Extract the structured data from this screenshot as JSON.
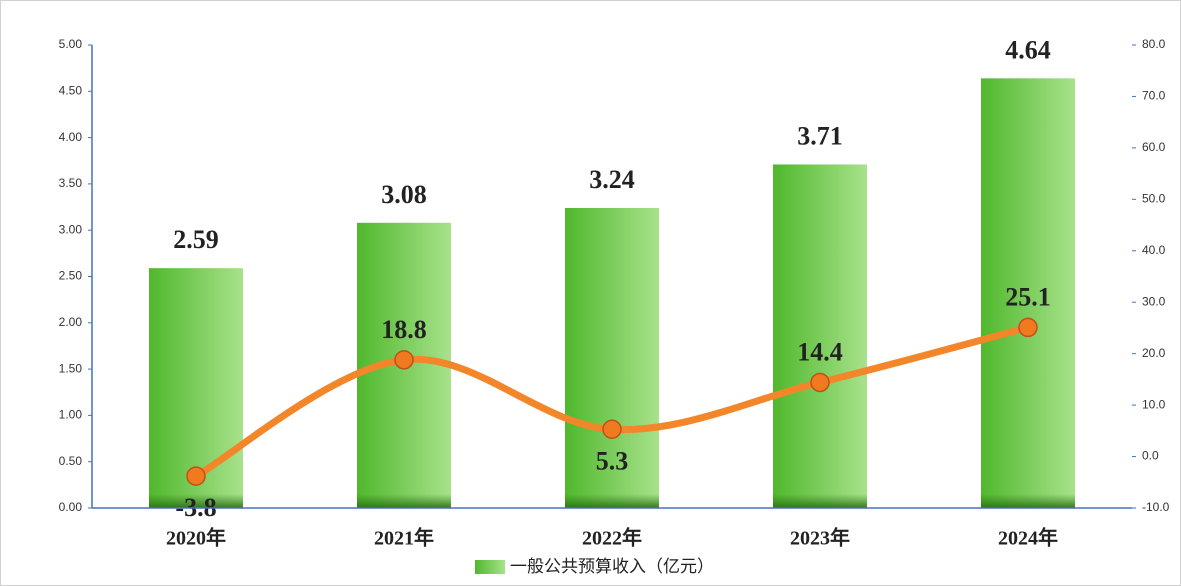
{
  "chart_data": {
    "type": "bar",
    "categories": [
      "2020年",
      "2021年",
      "2022年",
      "2023年",
      "2024年"
    ],
    "series": [
      {
        "name": "一般公共预算收入（亿元）",
        "type": "bar",
        "color": "#5cc23a",
        "values": [
          2.59,
          3.08,
          3.24,
          3.71,
          4.64
        ]
      },
      {
        "type": "line",
        "color": "#f4862a",
        "axis": "y2",
        "values": [
          -3.8,
          18.8,
          5.3,
          14.4,
          25.1
        ]
      }
    ],
    "ylim": [
      0,
      5
    ],
    "yticks": [
      {
        "value": 0,
        "label": "0.00"
      },
      {
        "value": 0.5,
        "label": "0.50"
      },
      {
        "value": 1,
        "label": "1.00"
      },
      {
        "value": 1.5,
        "label": "1.50"
      },
      {
        "value": 2,
        "label": "2.00"
      },
      {
        "value": 2.5,
        "label": "2.50"
      },
      {
        "value": 3,
        "label": "3.00"
      },
      {
        "value": 3.5,
        "label": "3.50"
      },
      {
        "value": 4,
        "label": "4.00"
      },
      {
        "value": 4.5,
        "label": "4.50"
      },
      {
        "value": 5,
        "label": "5.00"
      }
    ],
    "y2lim": [
      -10,
      80
    ],
    "y2ticks": [
      {
        "value": -10,
        "label": "-10.0"
      },
      {
        "value": 0,
        "label": "0.0"
      },
      {
        "value": 10,
        "label": "10.0"
      },
      {
        "value": 20,
        "label": "20.0"
      },
      {
        "value": 30,
        "label": "30.0"
      },
      {
        "value": 40,
        "label": "40.0"
      },
      {
        "value": 50,
        "label": "50.0"
      },
      {
        "value": 60,
        "label": "60.0"
      },
      {
        "value": 70,
        "label": "70.0"
      },
      {
        "value": 80,
        "label": "80.0"
      }
    ],
    "legend": "bottom"
  }
}
